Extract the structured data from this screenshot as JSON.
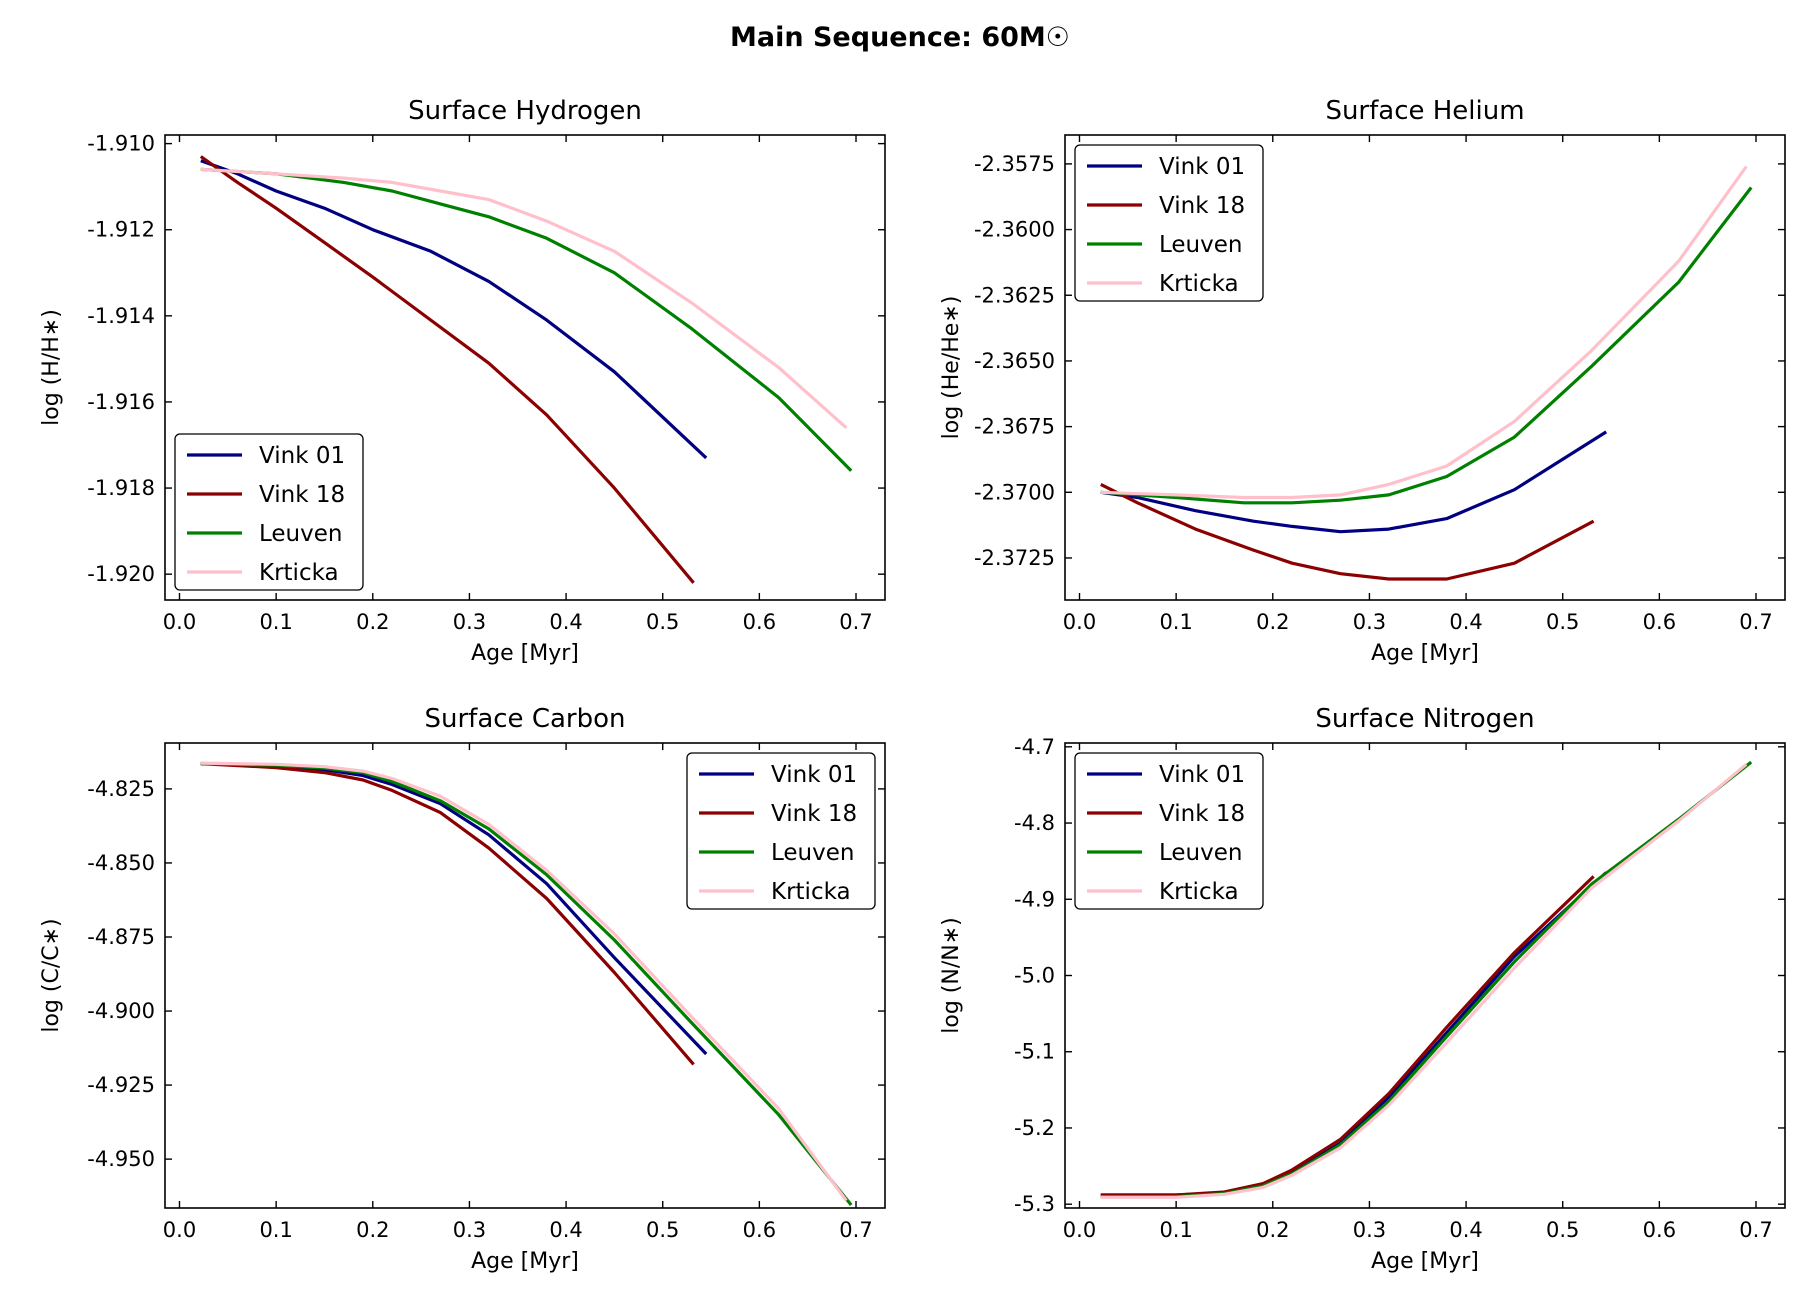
{
  "figure": {
    "suptitle": "Main Sequence: 60M☉"
  },
  "chart_data": [
    {
      "type": "line",
      "title": "Surface Hydrogen",
      "xlabel": "Age [Myr]",
      "ylabel": "log (H/H∗)",
      "xlim": [
        -0.015,
        0.73
      ],
      "ylim": [
        -1.9206,
        -1.9098
      ],
      "xticks": [
        0.0,
        0.1,
        0.2,
        0.3,
        0.4,
        0.5,
        0.6,
        0.7
      ],
      "xtick_labels": [
        "0.0",
        "0.1",
        "0.2",
        "0.3",
        "0.4",
        "0.5",
        "0.6",
        "0.7"
      ],
      "yticks": [
        -1.92,
        -1.918,
        -1.916,
        -1.914,
        -1.912,
        -1.91
      ],
      "ytick_labels": [
        "-1.920",
        "-1.918",
        "-1.916",
        "-1.914",
        "-1.912",
        "-1.910"
      ],
      "legend": "lower-left",
      "series": [
        {
          "name": "Vink 01",
          "color": "#000080",
          "x": [
            0.022,
            0.06,
            0.1,
            0.15,
            0.2,
            0.26,
            0.32,
            0.38,
            0.45,
            0.545
          ],
          "y": [
            -1.9104,
            -1.9107,
            -1.9111,
            -1.9115,
            -1.912,
            -1.9125,
            -1.9132,
            -1.9141,
            -1.9153,
            -1.9173
          ]
        },
        {
          "name": "Vink 18",
          "color": "#8b0000",
          "x": [
            0.022,
            0.06,
            0.1,
            0.15,
            0.2,
            0.26,
            0.32,
            0.38,
            0.45,
            0.532
          ],
          "y": [
            -1.9103,
            -1.9109,
            -1.9115,
            -1.9123,
            -1.9131,
            -1.9141,
            -1.9151,
            -1.9163,
            -1.918,
            -1.9202
          ]
        },
        {
          "name": "Leuven",
          "color": "#008000",
          "x": [
            0.022,
            0.1,
            0.17,
            0.22,
            0.27,
            0.32,
            0.38,
            0.45,
            0.53,
            0.62,
            0.695
          ],
          "y": [
            -1.9106,
            -1.9107,
            -1.9109,
            -1.9111,
            -1.9114,
            -1.9117,
            -1.9122,
            -1.913,
            -1.9143,
            -1.9159,
            -1.9176
          ]
        },
        {
          "name": "Krticka",
          "color": "#ffc0cb",
          "x": [
            0.022,
            0.1,
            0.17,
            0.22,
            0.27,
            0.32,
            0.38,
            0.45,
            0.53,
            0.62,
            0.69
          ],
          "y": [
            -1.9106,
            -1.9107,
            -1.9108,
            -1.9109,
            -1.9111,
            -1.9113,
            -1.9118,
            -1.9125,
            -1.9137,
            -1.9152,
            -1.9166
          ]
        }
      ]
    },
    {
      "type": "line",
      "title": "Surface Helium",
      "xlabel": "Age [Myr]",
      "ylabel": "log (He/He∗)",
      "xlim": [
        -0.015,
        0.73
      ],
      "ylim": [
        -2.3741,
        -2.3564
      ],
      "xticks": [
        0.0,
        0.1,
        0.2,
        0.3,
        0.4,
        0.5,
        0.6,
        0.7
      ],
      "xtick_labels": [
        "0.0",
        "0.1",
        "0.2",
        "0.3",
        "0.4",
        "0.5",
        "0.6",
        "0.7"
      ],
      "yticks": [
        -2.3725,
        -2.37,
        -2.3675,
        -2.365,
        -2.3625,
        -2.36,
        -2.3575
      ],
      "ytick_labels": [
        "-2.3725",
        "-2.3700",
        "-2.3675",
        "-2.3650",
        "-2.3625",
        "-2.3600",
        "-2.3575"
      ],
      "legend": "upper-left",
      "series": [
        {
          "name": "Vink 01",
          "color": "#000080",
          "x": [
            0.022,
            0.06,
            0.12,
            0.18,
            0.22,
            0.27,
            0.32,
            0.38,
            0.45,
            0.545
          ],
          "y": [
            -2.37,
            -2.3702,
            -2.3707,
            -2.3711,
            -2.3713,
            -2.3715,
            -2.3714,
            -2.371,
            -2.3699,
            -2.3677
          ]
        },
        {
          "name": "Vink 18",
          "color": "#8b0000",
          "x": [
            0.022,
            0.06,
            0.12,
            0.18,
            0.22,
            0.27,
            0.32,
            0.38,
            0.45,
            0.532
          ],
          "y": [
            -2.3697,
            -2.3704,
            -2.3714,
            -2.3722,
            -2.3727,
            -2.3731,
            -2.3733,
            -2.3733,
            -2.3727,
            -2.3711
          ]
        },
        {
          "name": "Leuven",
          "color": "#008000",
          "x": [
            0.022,
            0.1,
            0.17,
            0.22,
            0.27,
            0.32,
            0.38,
            0.45,
            0.53,
            0.62,
            0.695
          ],
          "y": [
            -2.37,
            -2.3702,
            -2.3704,
            -2.3704,
            -2.3703,
            -2.3701,
            -2.3694,
            -2.3679,
            -2.3652,
            -2.362,
            -2.3584
          ]
        },
        {
          "name": "Krticka",
          "color": "#ffc0cb",
          "x": [
            0.022,
            0.1,
            0.17,
            0.22,
            0.27,
            0.32,
            0.38,
            0.45,
            0.53,
            0.62,
            0.69
          ],
          "y": [
            -2.37,
            -2.3701,
            -2.3702,
            -2.3702,
            -2.3701,
            -2.3697,
            -2.369,
            -2.3673,
            -2.3646,
            -2.3612,
            -2.3576
          ]
        }
      ]
    },
    {
      "type": "line",
      "title": "Surface Carbon",
      "xlabel": "Age [Myr]",
      "ylabel": "log (C/C∗)",
      "xlim": [
        -0.015,
        0.73
      ],
      "ylim": [
        -4.9665,
        -4.8095
      ],
      "xticks": [
        0.0,
        0.1,
        0.2,
        0.3,
        0.4,
        0.5,
        0.6,
        0.7
      ],
      "xtick_labels": [
        "0.0",
        "0.1",
        "0.2",
        "0.3",
        "0.4",
        "0.5",
        "0.6",
        "0.7"
      ],
      "yticks": [
        -4.95,
        -4.925,
        -4.9,
        -4.875,
        -4.85,
        -4.825
      ],
      "ytick_labels": [
        "-4.950",
        "-4.925",
        "-4.900",
        "-4.875",
        "-4.850",
        "-4.825"
      ],
      "legend": "upper-right",
      "series": [
        {
          "name": "Vink 01",
          "color": "#000080",
          "x": [
            0.022,
            0.1,
            0.15,
            0.19,
            0.22,
            0.27,
            0.32,
            0.38,
            0.45,
            0.545
          ],
          "y": [
            -4.8165,
            -4.8172,
            -4.8185,
            -4.8205,
            -4.8235,
            -4.83,
            -4.8405,
            -4.857,
            -4.882,
            -4.9145
          ]
        },
        {
          "name": "Vink 18",
          "color": "#8b0000",
          "x": [
            0.022,
            0.1,
            0.15,
            0.19,
            0.22,
            0.27,
            0.32,
            0.38,
            0.45,
            0.532
          ],
          "y": [
            -4.8165,
            -4.8178,
            -4.8195,
            -4.822,
            -4.8255,
            -4.833,
            -4.845,
            -4.862,
            -4.887,
            -4.918
          ]
        },
        {
          "name": "Leuven",
          "color": "#008000",
          "x": [
            0.022,
            0.1,
            0.15,
            0.19,
            0.22,
            0.27,
            0.32,
            0.38,
            0.45,
            0.53,
            0.62,
            0.695
          ],
          "y": [
            -4.8165,
            -4.817,
            -4.818,
            -4.8195,
            -4.8225,
            -4.829,
            -4.8385,
            -4.854,
            -4.876,
            -4.904,
            -4.935,
            -4.9655
          ]
        },
        {
          "name": "Krticka",
          "color": "#ffc0cb",
          "x": [
            0.022,
            0.1,
            0.15,
            0.19,
            0.22,
            0.27,
            0.32,
            0.38,
            0.45,
            0.53,
            0.62,
            0.69
          ],
          "y": [
            -4.8163,
            -4.8167,
            -4.8175,
            -4.819,
            -4.8215,
            -4.8275,
            -4.837,
            -4.8525,
            -4.874,
            -4.902,
            -4.933,
            -4.964
          ]
        }
      ]
    },
    {
      "type": "line",
      "title": "Surface Nitrogen",
      "xlabel": "Age [Myr]",
      "ylabel": "log (N/N∗)",
      "xlim": [
        -0.015,
        0.73
      ],
      "ylim": [
        -5.305,
        -4.695
      ],
      "xticks": [
        0.0,
        0.1,
        0.2,
        0.3,
        0.4,
        0.5,
        0.6,
        0.7
      ],
      "xtick_labels": [
        "0.0",
        "0.1",
        "0.2",
        "0.3",
        "0.4",
        "0.5",
        "0.6",
        "0.7"
      ],
      "yticks": [
        -5.3,
        -5.2,
        -5.1,
        -5.0,
        -4.9,
        -4.8,
        -4.7
      ],
      "ytick_labels": [
        "-5.3",
        "-5.2",
        "-5.1",
        "-5.0",
        "-4.9",
        "-4.8",
        "-4.7"
      ],
      "legend": "upper-left",
      "series": [
        {
          "name": "Vink 01",
          "color": "#000080",
          "x": [
            0.022,
            0.1,
            0.15,
            0.19,
            0.22,
            0.27,
            0.32,
            0.38,
            0.45,
            0.545
          ],
          "y": [
            -5.288,
            -5.288,
            -5.285,
            -5.275,
            -5.258,
            -5.22,
            -5.16,
            -5.075,
            -4.975,
            -4.865
          ]
        },
        {
          "name": "Vink 18",
          "color": "#8b0000",
          "x": [
            0.022,
            0.1,
            0.15,
            0.19,
            0.22,
            0.27,
            0.32,
            0.38,
            0.45,
            0.532
          ],
          "y": [
            -5.288,
            -5.288,
            -5.284,
            -5.273,
            -5.255,
            -5.215,
            -5.155,
            -5.068,
            -4.97,
            -4.87
          ]
        },
        {
          "name": "Leuven",
          "color": "#008000",
          "x": [
            0.022,
            0.1,
            0.15,
            0.19,
            0.22,
            0.27,
            0.32,
            0.38,
            0.45,
            0.53,
            0.62,
            0.695
          ],
          "y": [
            -5.29,
            -5.29,
            -5.286,
            -5.276,
            -5.26,
            -5.222,
            -5.165,
            -5.08,
            -4.982,
            -4.88,
            -4.795,
            -4.72
          ]
        },
        {
          "name": "Krticka",
          "color": "#ffc0cb",
          "x": [
            0.022,
            0.1,
            0.15,
            0.19,
            0.22,
            0.27,
            0.32,
            0.38,
            0.45,
            0.53,
            0.62,
            0.69
          ],
          "y": [
            -5.291,
            -5.291,
            -5.287,
            -5.278,
            -5.262,
            -5.226,
            -5.17,
            -5.088,
            -4.99,
            -4.885,
            -4.797,
            -4.723
          ]
        }
      ]
    }
  ]
}
